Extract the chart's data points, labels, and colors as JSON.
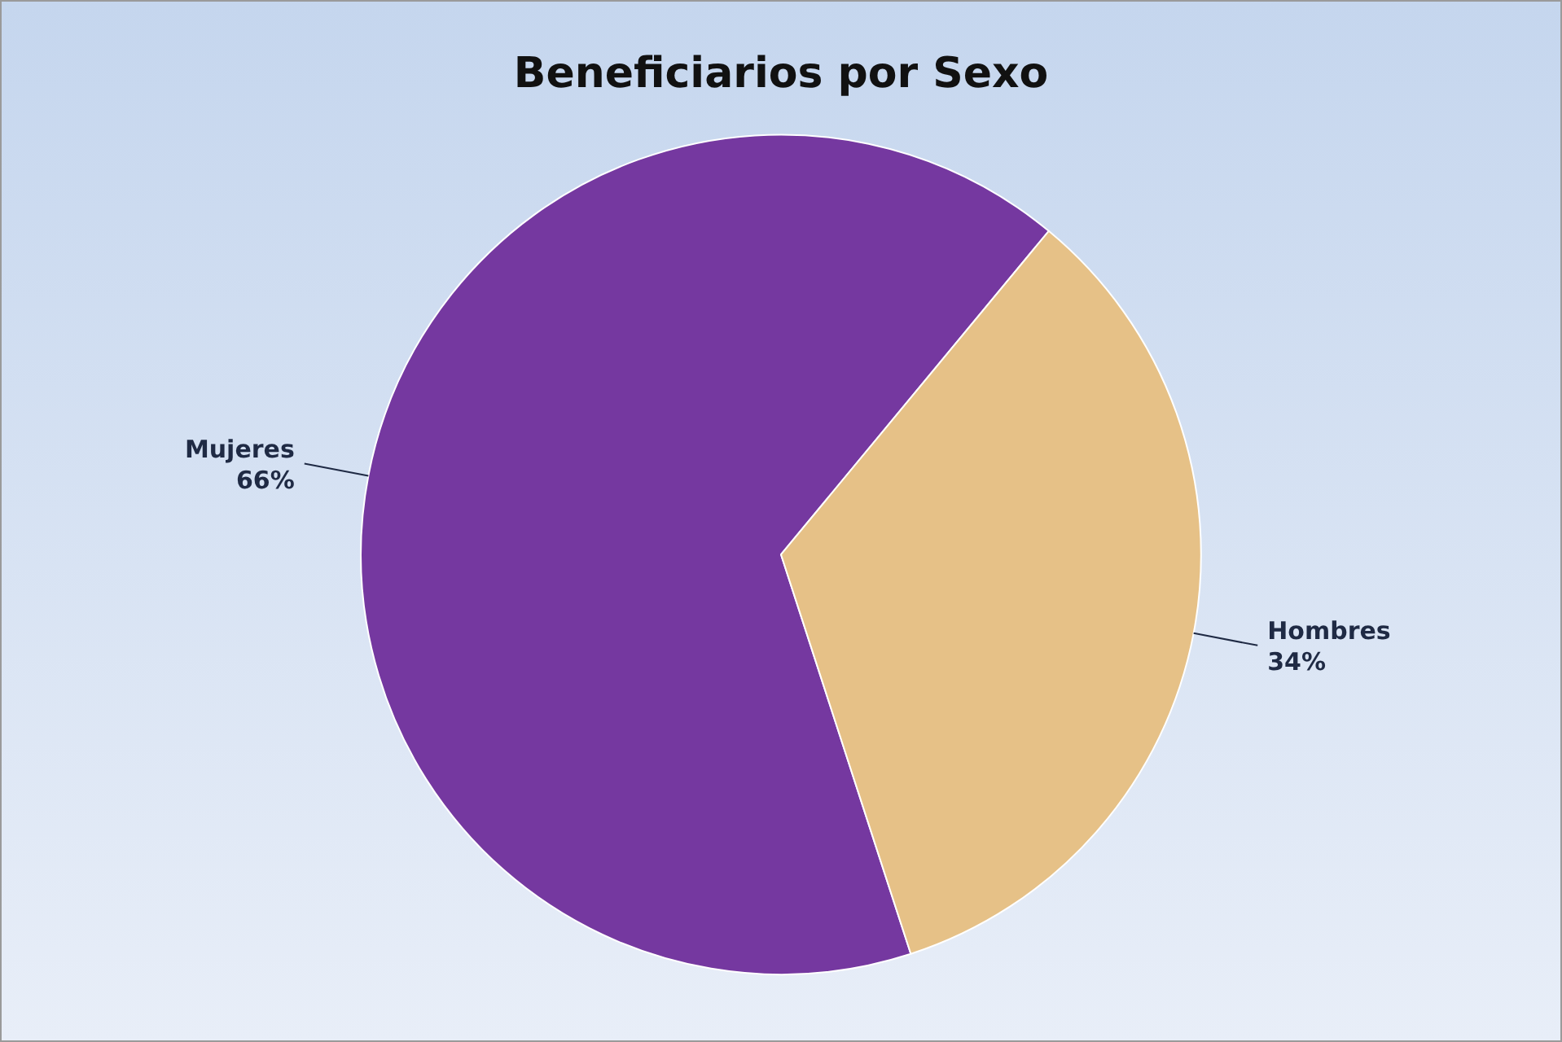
{
  "chart_data": {
    "type": "pie",
    "title": "Beneficiarios por Sexo",
    "categories": [
      "Mujeres",
      "Hombres"
    ],
    "values": [
      66,
      34
    ],
    "colors": [
      "#7538a0",
      "#e6c187"
    ],
    "value_labels": [
      "66%",
      "34%"
    ],
    "legend": false
  }
}
